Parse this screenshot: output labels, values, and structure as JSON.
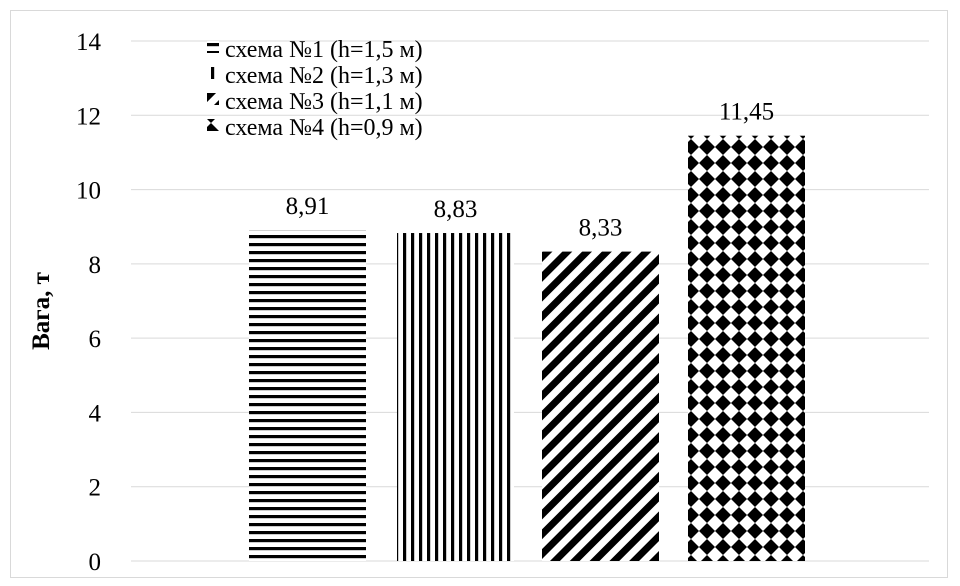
{
  "chart_data": {
    "type": "bar",
    "categories": [
      "схема №1 (h=1,5 м)",
      "схема №2 (h=1,3 м)",
      "схема №3 (h=1,1 м)",
      "схема №4 (h=0,9 м)"
    ],
    "values": [
      8.91,
      8.83,
      8.33,
      11.45
    ],
    "data_labels": [
      "8,91",
      "8,83",
      "8,33",
      "11,45"
    ],
    "title": "",
    "xlabel": "",
    "ylabel": "Вага, т",
    "ylim": [
      0,
      14
    ],
    "yticks": [
      "0",
      "2",
      "4",
      "6",
      "8",
      "10",
      "12",
      "14"
    ],
    "grid": true,
    "legend_position": "top-left",
    "patterns": [
      "horizontal-lines",
      "vertical-lines",
      "diagonal-lines",
      "diamond-checker"
    ],
    "colors": {
      "pattern_ink": "#000000",
      "background": "#ffffff",
      "gridline": "#d9d9d9"
    }
  }
}
